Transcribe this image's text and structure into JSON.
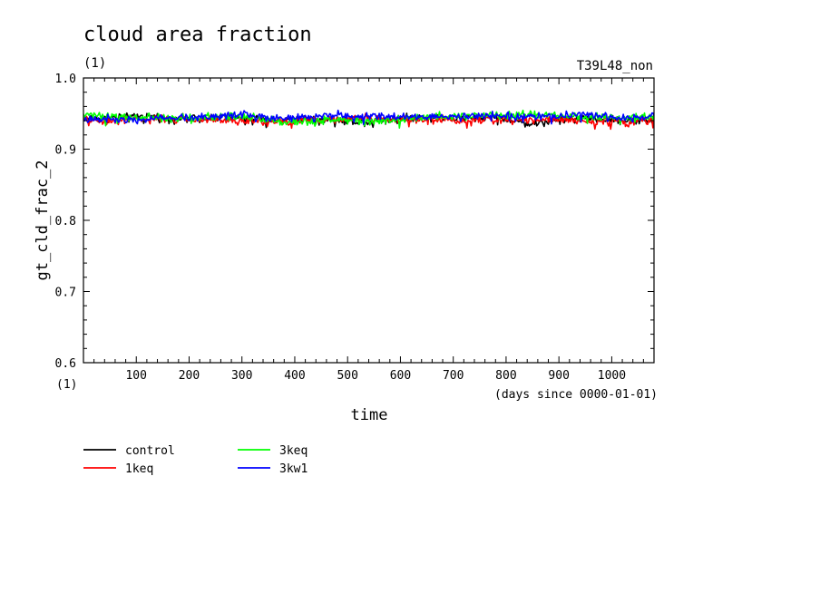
{
  "chart_data": {
    "type": "line",
    "title": "cloud area fraction",
    "title_unit": "(1)",
    "run_label": "T39L48_non",
    "ylabel": "gt_cld_frac_2",
    "y_unit_label": "(1)",
    "xlabel": "time",
    "x_unit_label": "(days since 0000-01-01)",
    "xlim": [
      0,
      1080
    ],
    "ylim": [
      0.6,
      1.0
    ],
    "x_ticks": [
      100,
      200,
      300,
      400,
      500,
      600,
      700,
      800,
      900,
      1000
    ],
    "x_tick_labels": [
      "100",
      "200",
      "300",
      "400",
      "500",
      "600",
      "700",
      "800",
      "900",
      "1000"
    ],
    "y_ticks": [
      0.6,
      0.7,
      0.8,
      0.9,
      1.0
    ],
    "y_tick_labels": [
      "0.6",
      "0.7",
      "0.8",
      "0.9",
      "1.0"
    ],
    "x": [
      0,
      60,
      120,
      180,
      240,
      300,
      360,
      420,
      480,
      540,
      600,
      660,
      720,
      780,
      840,
      900,
      960,
      1020,
      1080
    ],
    "series": [
      {
        "name": "control",
        "color": "#000000",
        "values": [
          0.943,
          0.944,
          0.946,
          0.942,
          0.945,
          0.944,
          0.94,
          0.943,
          0.941,
          0.938,
          0.944,
          0.945,
          0.943,
          0.946,
          0.936,
          0.94,
          0.943,
          0.94,
          0.942
        ]
      },
      {
        "name": "1keq",
        "color": "#ff0000",
        "values": [
          0.94,
          0.941,
          0.942,
          0.943,
          0.941,
          0.94,
          0.938,
          0.941,
          0.942,
          0.943,
          0.941,
          0.942,
          0.94,
          0.941,
          0.942,
          0.941,
          0.94,
          0.939,
          0.94
        ]
      },
      {
        "name": "3keq",
        "color": "#00ff00",
        "values": [
          0.948,
          0.946,
          0.944,
          0.943,
          0.945,
          0.946,
          0.94,
          0.938,
          0.942,
          0.94,
          0.942,
          0.946,
          0.947,
          0.949,
          0.948,
          0.947,
          0.945,
          0.943,
          0.946
        ]
      },
      {
        "name": "3kw1",
        "color": "#0000ff",
        "values": [
          0.942,
          0.943,
          0.942,
          0.944,
          0.946,
          0.949,
          0.944,
          0.946,
          0.948,
          0.945,
          0.946,
          0.945,
          0.946,
          0.948,
          0.945,
          0.947,
          0.948,
          0.943,
          0.945
        ]
      }
    ],
    "legend_position": "bottom-left",
    "grid": false
  }
}
